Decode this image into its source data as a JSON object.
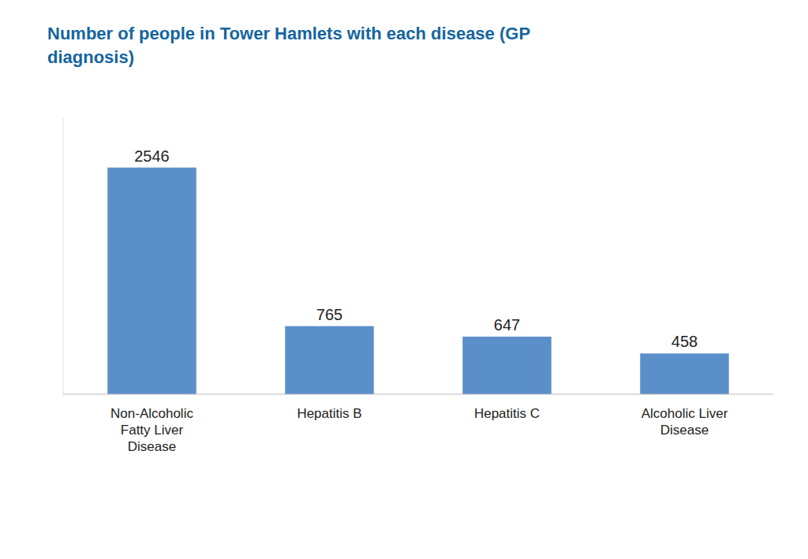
{
  "chart_data": {
    "type": "bar",
    "title": "Number of people in Tower Hamlets with each disease (GP\ndiagnosis)",
    "categories": [
      "Non-Alcoholic\nFatty Liver\nDisease",
      "Hepatitis B",
      "Hepatitis C",
      "Alcoholic Liver\nDisease"
    ],
    "values": [
      2546,
      765,
      647,
      458
    ],
    "value_labels": [
      "2546",
      "765",
      "647",
      "458"
    ],
    "data_labels": true,
    "color": "#5b8fca",
    "ylim": [
      0,
      3100
    ],
    "tick_labels": "x",
    "grid": false
  }
}
